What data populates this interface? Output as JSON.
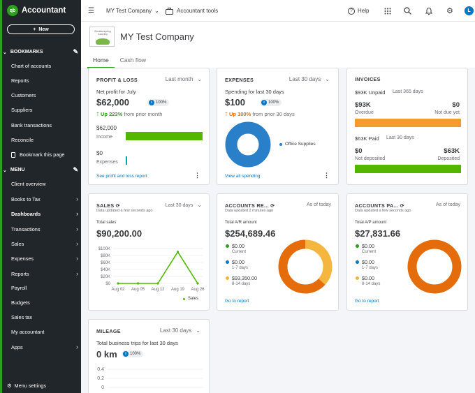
{
  "app": {
    "brand": "Accountant",
    "logo_text": "qb"
  },
  "sidebar": {
    "new_label": "New",
    "bookmarks_header": "BOOKMARKS",
    "bookmarks": [
      "Chart of accounts",
      "Reports",
      "Customers",
      "Suppliers",
      "Bank transactions",
      "Reconcile",
      "Bookmark this page"
    ],
    "menu_header": "MENU",
    "menu": [
      {
        "label": "Client overview",
        "arrow": ""
      },
      {
        "label": "Books to Tax",
        "arrow": "›"
      },
      {
        "label": "Dashboards",
        "arrow": "›"
      },
      {
        "label": "Transactions",
        "arrow": "›"
      },
      {
        "label": "Sales",
        "arrow": "›"
      },
      {
        "label": "Expenses",
        "arrow": "›"
      },
      {
        "label": "Reports",
        "arrow": "›"
      },
      {
        "label": "Payroll",
        "arrow": ""
      },
      {
        "label": "Budgets",
        "arrow": ""
      },
      {
        "label": "Sales tax",
        "arrow": ""
      },
      {
        "label": "My accountant",
        "arrow": ""
      },
      {
        "label": "Apps",
        "arrow": "›"
      }
    ],
    "menu_settings": "Menu settings",
    "accent_color": "#2ca01c"
  },
  "topbar": {
    "company": "MY Test Company",
    "accountant_tools": "Accountant tools",
    "help": "Help",
    "avatar": "L"
  },
  "header": {
    "company_name": "MY Test Company",
    "logo_text": "Bookkeeping Country",
    "tabs": [
      "Home",
      "Cash flow"
    ]
  },
  "profit_loss": {
    "title": "PROFIT & LOSS",
    "range": "Last month",
    "subtitle": "Net profit for July",
    "amount": "$62,000",
    "badge": "100%",
    "change_pct": "Up 223%",
    "change_text": "from prior month",
    "income_amount": "$62,000",
    "income_label": "Income",
    "income_fraction": 1.0,
    "expenses_amount": "$0",
    "expenses_label": "Expenses",
    "expenses_fraction": 0.0,
    "link": "See profit and loss report"
  },
  "expenses": {
    "title": "EXPENSES",
    "range": "Last 30 days",
    "subtitle": "Spending for last 30 days",
    "amount": "$100",
    "badge": "100%",
    "change_pct": "Up 100%",
    "change_text": "from prior 30 days",
    "legend": "Office Supplies",
    "link": "View all spending"
  },
  "invoices": {
    "title": "INVOICES",
    "unpaid_label": "$93K Unpaid",
    "unpaid_range": "Last 365 days",
    "overdue_amount": "$93K",
    "overdue_label": "Overdue",
    "notdue_amount": "$0",
    "notdue_label": "Not due yet",
    "paid_label": "$63K Paid",
    "paid_range": "Last 30 days",
    "notdeposited_amount": "$0",
    "notdeposited_label": "Not deposited",
    "deposited_amount": "$63K",
    "deposited_label": "Deposited"
  },
  "sales": {
    "title": "SALES",
    "range": "Last 30 days",
    "updated": "Data updated a few seconds ago",
    "total_label": "Total sales",
    "amount": "$90,200.00",
    "legend": "Sales"
  },
  "ar": {
    "title": "ACCOUNTS RE...",
    "range": "As of today",
    "updated": "Data updated 2 minutes ago",
    "total_label": "Total A/R amount",
    "amount": "$254,689.46",
    "rows": [
      {
        "amount": "$0.00",
        "label": "Current",
        "color": "#2ca01c"
      },
      {
        "amount": "$0.00",
        "label": "1-7 days",
        "color": "#0077c5"
      },
      {
        "amount": "$93,350.00",
        "label": "8-14 days",
        "color": "#f4b63f"
      }
    ],
    "link": "Go to report"
  },
  "ap": {
    "title": "ACCOUNTS PA...",
    "range": "As of today",
    "updated": "Data updated a few seconds ago",
    "total_label": "Total A/P amount",
    "amount": "$27,831.66",
    "rows": [
      {
        "amount": "$0.00",
        "label": "Current",
        "color": "#2ca01c"
      },
      {
        "amount": "$0.00",
        "label": "1-7 days",
        "color": "#0077c5"
      },
      {
        "amount": "$0.00",
        "label": "8-14 days",
        "color": "#f4b63f"
      }
    ],
    "link": "Go to report"
  },
  "mileage": {
    "title": "MILEAGE",
    "range": "Last 30 days",
    "subtitle": "Total business trips for last 30 days",
    "amount": "0 km",
    "badge": "100%"
  },
  "chart_data": [
    {
      "type": "line",
      "categories": [
        "Aug 02",
        "Aug 05",
        "Aug 12",
        "Aug 19",
        "Aug 26"
      ],
      "series": [
        {
          "name": "Sales",
          "values": [
            0,
            0,
            0,
            90200,
            0
          ]
        }
      ],
      "y_ticks": [
        "$100K",
        "$80K",
        "$60K",
        "$40K",
        "$20K",
        "$0"
      ],
      "ylim": [
        0,
        100000
      ],
      "color": "#53b700"
    },
    {
      "type": "pie",
      "labels": [
        "Office Supplies"
      ],
      "values": [
        100
      ],
      "color": "#2a7fc9"
    },
    {
      "type": "pie",
      "labels": [
        "8-14 days",
        "over 14 days"
      ],
      "values": [
        93350,
        161339.46
      ],
      "colors": [
        "#f4b63f",
        "#e46c0a"
      ]
    },
    {
      "type": "pie",
      "labels": [
        "overdue"
      ],
      "values": [
        27831.66
      ],
      "colors": [
        "#e46c0a"
      ]
    },
    {
      "type": "line",
      "y_ticks": [
        "0.4",
        "0.2",
        "0"
      ],
      "ylim": [
        0,
        0.4
      ]
    }
  ]
}
